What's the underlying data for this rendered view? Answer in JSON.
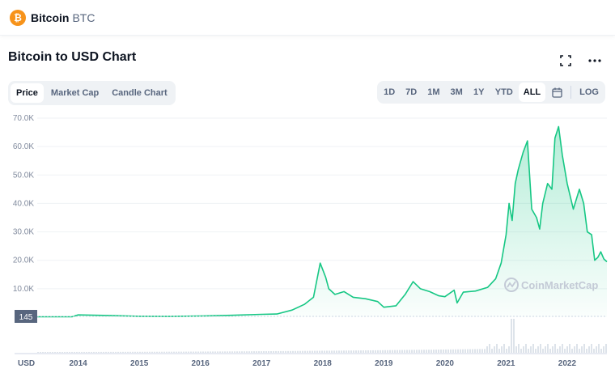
{
  "header": {
    "coin_logo_glyph": "₿",
    "coin_name": "Bitcoin",
    "coin_symbol": "BTC"
  },
  "chart_title": "Bitcoin to USD Chart",
  "chart_type_tabs": [
    {
      "label": "Price",
      "active": true
    },
    {
      "label": "Market Cap",
      "active": false
    },
    {
      "label": "Candle Chart",
      "active": false
    }
  ],
  "range_tabs": [
    {
      "label": "1D",
      "active": false
    },
    {
      "label": "7D",
      "active": false
    },
    {
      "label": "1M",
      "active": false
    },
    {
      "label": "3M",
      "active": false
    },
    {
      "label": "1Y",
      "active": false
    },
    {
      "label": "YTD",
      "active": false
    },
    {
      "label": "ALL",
      "active": true
    }
  ],
  "log_label": "LOG",
  "icons": {
    "fullscreen": "fullscreen-icon",
    "more": "more-options-icon",
    "calendar": "calendar-icon"
  },
  "colors": {
    "line": "#16c784",
    "fill_top": "#16c784",
    "accent_orange": "#f7931a",
    "base_label_bg": "#58667e"
  },
  "watermark": "CoinMarketCap",
  "chart_data": {
    "type": "area",
    "title": "Bitcoin to USD Chart",
    "currency_label": "USD",
    "start_value_label": "145",
    "ylim": [
      0,
      70000
    ],
    "y_ticks": [
      "10.0K",
      "20.0K",
      "30.0K",
      "40.0K",
      "50.0K",
      "60.0K",
      "70.0K"
    ],
    "y_tick_values": [
      10000,
      20000,
      30000,
      40000,
      50000,
      60000,
      70000
    ],
    "x_ticks": [
      "2014",
      "2015",
      "2016",
      "2017",
      "2018",
      "2019",
      "2020",
      "2021",
      "2022"
    ],
    "xlim": [
      2013.33,
      2022.65
    ],
    "grid": true,
    "series": [
      {
        "x": [
          2013.33,
          2013.9,
          2014.0,
          2014.5,
          2015.0,
          2015.5,
          2016.0,
          2016.5,
          2017.0,
          2017.25,
          2017.5,
          2017.7,
          2017.85,
          2017.96,
          2018.05,
          2018.1,
          2018.2,
          2018.35,
          2018.5,
          2018.7,
          2018.9,
          2019.0,
          2019.2,
          2019.35,
          2019.48,
          2019.6,
          2019.75,
          2019.9,
          2020.0,
          2020.15,
          2020.2,
          2020.3,
          2020.5,
          2020.7,
          2020.83,
          2020.92,
          2021.0,
          2021.05,
          2021.1,
          2021.15,
          2021.2,
          2021.28,
          2021.35,
          2021.42,
          2021.5,
          2021.55,
          2021.6,
          2021.68,
          2021.75,
          2021.8,
          2021.86,
          2021.92,
          2022.0,
          2022.1,
          2022.2,
          2022.27,
          2022.33,
          2022.4,
          2022.45,
          2022.5,
          2022.55,
          2022.6,
          2022.65
        ],
        "y": [
          145,
          150,
          800,
          600,
          300,
          250,
          400,
          650,
          1000,
          1100,
          2500,
          4500,
          7000,
          19000,
          14000,
          10000,
          8000,
          9000,
          7000,
          6500,
          5500,
          3500,
          4000,
          8000,
          12500,
          10000,
          9000,
          7500,
          7200,
          9500,
          5000,
          8800,
          9200,
          10500,
          13500,
          19000,
          29000,
          40000,
          34000,
          47000,
          52000,
          58000,
          62000,
          38000,
          35000,
          31000,
          40000,
          47000,
          45000,
          63000,
          67000,
          57000,
          47000,
          38000,
          45000,
          40000,
          30000,
          29000,
          20000,
          21000,
          23000,
          20500,
          19500
        ]
      }
    ]
  }
}
